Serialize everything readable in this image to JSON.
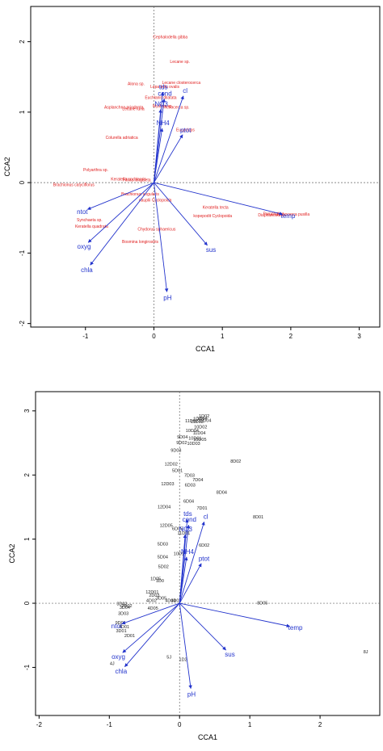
{
  "chart_data": [
    {
      "type": "scatter",
      "title": "",
      "xlabel": "CCA1",
      "ylabel": "CCA2",
      "xlim": [
        -1.8,
        3.3
      ],
      "ylim": [
        -2.05,
        2.5
      ],
      "xticks": [
        "-1",
        "0",
        "1",
        "2",
        "3"
      ],
      "yticks": [
        "-2",
        "-1",
        "0",
        "1",
        "2"
      ],
      "grid": false,
      "environmental_vectors": [
        {
          "label": "tds",
          "x": 0.13,
          "y": 1.28
        },
        {
          "label": "cond",
          "x": 0.15,
          "y": 1.19
        },
        {
          "label": "cl",
          "x": 0.43,
          "y": 1.23
        },
        {
          "label": "NO3",
          "x": 0.1,
          "y": 1.04
        },
        {
          "label": "NH4",
          "x": 0.12,
          "y": 0.77
        },
        {
          "label": "ptot",
          "x": 0.42,
          "y": 0.68
        },
        {
          "label": "temp",
          "x": 1.88,
          "y": -0.45
        },
        {
          "label": "ntot",
          "x": -0.97,
          "y": -0.38
        },
        {
          "label": "oxyg",
          "x": -0.96,
          "y": -0.85
        },
        {
          "label": "chla",
          "x": -0.93,
          "y": -1.17
        },
        {
          "label": "sus",
          "x": 0.78,
          "y": -0.89
        },
        {
          "label": "pH",
          "x": 0.19,
          "y": -1.55
        }
      ],
      "species": [
        {
          "label": "Cephalodella gibba",
          "x": 0.24,
          "y": 2.05
        },
        {
          "label": "Lecane sp.",
          "x": 0.38,
          "y": 1.7
        },
        {
          "label": "Lecane closterocerca",
          "x": 0.4,
          "y": 1.4
        },
        {
          "label": "Alona sp.",
          "x": -0.26,
          "y": 1.38
        },
        {
          "label": "Lepadella ovalis",
          "x": 0.16,
          "y": 1.34
        },
        {
          "label": "Euchlanis dilatata",
          "x": 0.1,
          "y": 1.19
        },
        {
          "label": "Asplanchna priodonta",
          "x": -0.44,
          "y": 1.05
        },
        {
          "label": "Lecane luna",
          "x": -0.3,
          "y": 1.03
        },
        {
          "label": "Mytilina sp.",
          "x": 0.13,
          "y": 1.07
        },
        {
          "label": "Trichocerca sp.",
          "x": 0.32,
          "y": 1.05
        },
        {
          "label": "Eucyclops",
          "x": 0.46,
          "y": 0.73
        },
        {
          "label": "Colurella adriatica",
          "x": -0.47,
          "y": 0.62
        },
        {
          "label": "Polyarthra sp.",
          "x": -0.85,
          "y": 0.16
        },
        {
          "label": "Keratella cochlearis",
          "x": -0.37,
          "y": 0.03
        },
        {
          "label": "Filinia longiseta",
          "x": -0.25,
          "y": 0.02
        },
        {
          "label": "Brachionus calyciflorus",
          "x": -1.17,
          "y": -0.05
        },
        {
          "label": "Brachionus angularis",
          "x": -0.2,
          "y": -0.18
        },
        {
          "label": "nauplii Cyclopoida",
          "x": 0.02,
          "y": -0.27
        },
        {
          "label": "Keratella tecta",
          "x": 0.9,
          "y": -0.37
        },
        {
          "label": "kopepodit Cyclopoida",
          "x": 0.86,
          "y": -0.49
        },
        {
          "label": "Diaphanosoma",
          "x": 1.72,
          "y": -0.48
        },
        {
          "label": "Pompholyx",
          "x": 1.74,
          "y": -0.46
        },
        {
          "label": "Trichocerca pusilla",
          "x": 2.03,
          "y": -0.47
        },
        {
          "label": "Synchaeta sp.",
          "x": -0.94,
          "y": -0.55
        },
        {
          "label": "Keratella quadrata",
          "x": -0.91,
          "y": -0.64
        },
        {
          "label": "Chydorus sphaericus",
          "x": 0.04,
          "y": -0.68
        },
        {
          "label": "Bosmina longirostris",
          "x": -0.2,
          "y": -0.86
        }
      ]
    },
    {
      "type": "scatter",
      "title": "",
      "xlabel": "CCA1",
      "ylabel": "CCA2",
      "xlim": [
        -2.05,
        2.85
      ],
      "ylim": [
        -1.75,
        3.3
      ],
      "xticks": [
        "-2",
        "-1",
        "0",
        "1",
        "2"
      ],
      "yticks": [
        "-1",
        "0",
        "1",
        "2",
        "3"
      ],
      "grid": false,
      "environmental_vectors": [
        {
          "label": "tds",
          "x": 0.11,
          "y": 1.31
        },
        {
          "label": "cond",
          "x": 0.13,
          "y": 1.22
        },
        {
          "label": "cl",
          "x": 0.35,
          "y": 1.27
        },
        {
          "label": "NO3",
          "x": 0.08,
          "y": 1.07
        },
        {
          "label": "NH4",
          "x": 0.1,
          "y": 0.72
        },
        {
          "label": "ptot",
          "x": 0.31,
          "y": 0.62
        },
        {
          "label": "temp",
          "x": 1.57,
          "y": -0.36
        },
        {
          "label": "ntot",
          "x": -0.82,
          "y": -0.32
        },
        {
          "label": "oxyg",
          "x": -0.81,
          "y": -0.77
        },
        {
          "label": "chla",
          "x": -0.78,
          "y": -0.99
        },
        {
          "label": "sus",
          "x": 0.66,
          "y": -0.73
        },
        {
          "label": "pH",
          "x": 0.16,
          "y": -1.33
        }
      ],
      "sites": [
        {
          "label": "1D02",
          "x": 0.35,
          "y": 2.9
        },
        {
          "label": "1D03",
          "x": 0.27,
          "y": 2.85
        },
        {
          "label": "1D04",
          "x": 0.32,
          "y": 2.86
        },
        {
          "label": "11D02",
          "x": 0.17,
          "y": 2.82
        },
        {
          "label": "11D03",
          "x": 0.25,
          "y": 2.81
        },
        {
          "label": "11D04",
          "x": 0.36,
          "y": 2.83
        },
        {
          "label": "10D02",
          "x": 0.3,
          "y": 2.73
        },
        {
          "label": "10D04",
          "x": 0.18,
          "y": 2.67
        },
        {
          "label": "11D04",
          "x": 0.28,
          "y": 2.63
        },
        {
          "label": "9D04",
          "x": 0.04,
          "y": 2.57
        },
        {
          "label": "10D01",
          "x": 0.22,
          "y": 2.55
        },
        {
          "label": "10D05",
          "x": 0.29,
          "y": 2.53
        },
        {
          "label": "9D02",
          "x": 0.03,
          "y": 2.48
        },
        {
          "label": "10D03",
          "x": 0.2,
          "y": 2.47
        },
        {
          "label": "9D03",
          "x": -0.05,
          "y": 2.36
        },
        {
          "label": "8D02",
          "x": 0.8,
          "y": 2.19
        },
        {
          "label": "12D02",
          "x": -0.12,
          "y": 2.15
        },
        {
          "label": "5D01",
          "x": -0.03,
          "y": 2.05
        },
        {
          "label": "7D03",
          "x": 0.14,
          "y": 1.97
        },
        {
          "label": "7D04",
          "x": 0.26,
          "y": 1.9
        },
        {
          "label": "12D03",
          "x": -0.17,
          "y": 1.84
        },
        {
          "label": "6D03",
          "x": 0.15,
          "y": 1.82
        },
        {
          "label": "8D04",
          "x": 0.6,
          "y": 1.71
        },
        {
          "label": "6D04",
          "x": 0.13,
          "y": 1.57
        },
        {
          "label": "12D04",
          "x": -0.22,
          "y": 1.48
        },
        {
          "label": "7D01",
          "x": 0.32,
          "y": 1.46
        },
        {
          "label": "8D01",
          "x": 1.12,
          "y": 1.32
        },
        {
          "label": "12D05",
          "x": -0.19,
          "y": 1.19
        },
        {
          "label": "6D05",
          "x": -0.03,
          "y": 1.14
        },
        {
          "label": "11D01",
          "x": 0.06,
          "y": 1.07
        },
        {
          "label": "6D02",
          "x": 0.35,
          "y": 0.88
        },
        {
          "label": "5D03",
          "x": -0.24,
          "y": 0.9
        },
        {
          "label": "10D1",
          "x": -0.01,
          "y": 0.75
        },
        {
          "label": "5D04",
          "x": -0.24,
          "y": 0.7
        },
        {
          "label": "5D02",
          "x": -0.23,
          "y": 0.55
        },
        {
          "label": "1D05",
          "x": -0.34,
          "y": 0.36
        },
        {
          "label": "1D0",
          "x": -0.28,
          "y": 0.33
        },
        {
          "label": "12D01",
          "x": -0.39,
          "y": 0.15
        },
        {
          "label": "2D03",
          "x": -0.36,
          "y": 0.1
        },
        {
          "label": "4D02",
          "x": -0.4,
          "y": 0.02
        },
        {
          "label": "3D05",
          "x": -0.26,
          "y": 0.06
        },
        {
          "label": "4D04",
          "x": -0.13,
          "y": 0.02
        },
        {
          "label": "3D02",
          "x": -0.82,
          "y": -0.03
        },
        {
          "label": "2D02",
          "x": -0.75,
          "y": -0.06
        },
        {
          "label": "3D04",
          "x": -0.78,
          "y": -0.09
        },
        {
          "label": "4D05",
          "x": -0.38,
          "y": -0.1
        },
        {
          "label": "3D03",
          "x": -0.8,
          "y": -0.18
        },
        {
          "label": "9D01",
          "x": -0.84,
          "y": -0.33
        },
        {
          "label": "4D01",
          "x": -0.79,
          "y": -0.39
        },
        {
          "label": "3D01",
          "x": -0.83,
          "y": -0.45
        },
        {
          "label": "2D01",
          "x": -0.71,
          "y": -0.53
        },
        {
          "label": "4D03",
          "x": -0.05,
          "y": 0.02
        },
        {
          "label": "8D05",
          "x": 1.18,
          "y": -0.02
        },
        {
          "label": "8J",
          "x": 2.65,
          "y": -0.78
        },
        {
          "label": "5J",
          "x": -0.15,
          "y": -0.86
        },
        {
          "label": "1D2",
          "x": 0.05,
          "y": -0.9
        },
        {
          "label": "4J",
          "x": -0.96,
          "y": -0.96
        }
      ]
    }
  ]
}
